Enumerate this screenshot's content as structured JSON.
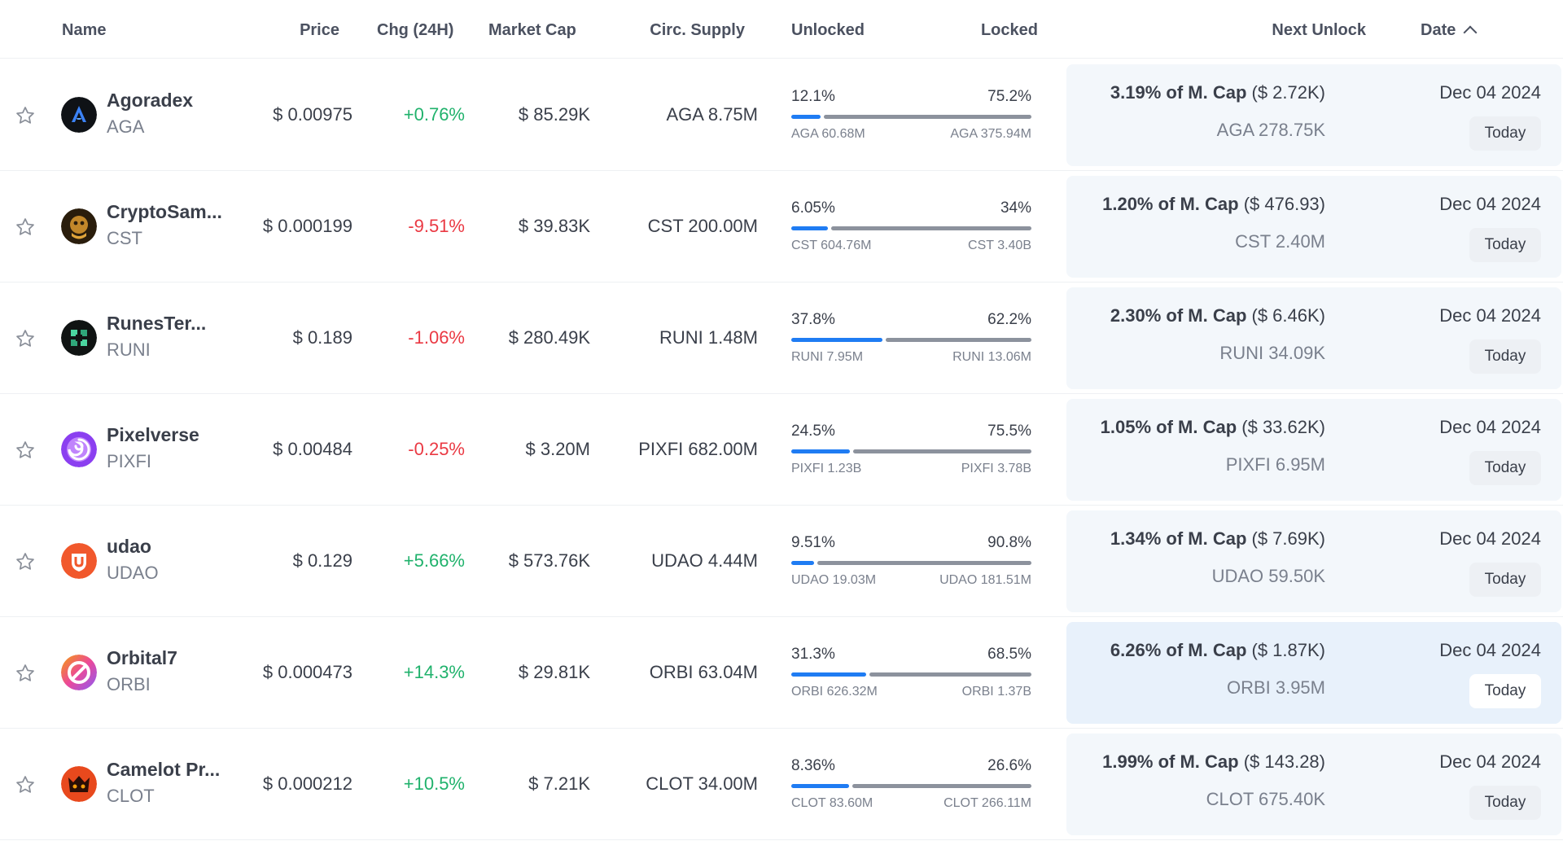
{
  "header": {
    "name": "Name",
    "price": "Price",
    "chg": "Chg (24H)",
    "market_cap": "Market Cap",
    "circ_supply": "Circ. Supply",
    "unlocked": "Unlocked",
    "locked": "Locked",
    "next_unlock": "Next Unlock",
    "date": "Date"
  },
  "colors": {
    "up": "#20b26c",
    "down": "#ea3943",
    "bar_fill": "#1f7cf3",
    "bar_rest": "#8c929d"
  },
  "rows": [
    {
      "name": "Agoradex",
      "symbol": "AGA",
      "logo_icon": "agoradex-logo-icon",
      "price": "$ 0.00975",
      "chg": "+0.76%",
      "chg_dir": "up",
      "market_cap": "$ 85.29K",
      "circ_supply": "AGA 8.75M",
      "unlocked_pct": "12.1%",
      "locked_pct": "75.2%",
      "unlocked_fraction": 0.121,
      "unlocked_amt": "AGA 60.68M",
      "locked_amt": "AGA 375.94M",
      "next_pct": "3.19% of M. Cap",
      "next_usd": " ($ 2.72K)",
      "next_amt": "AGA 278.75K",
      "date": "Dec 04 2024",
      "today": "Today"
    },
    {
      "name": "CryptoSam...",
      "symbol": "CST",
      "logo_icon": "cryptosam-logo-icon",
      "price": "$ 0.000199",
      "chg": "-9.51%",
      "chg_dir": "down",
      "market_cap": "$ 39.83K",
      "circ_supply": "CST 200.00M",
      "unlocked_pct": "6.05%",
      "locked_pct": "34%",
      "unlocked_fraction": 0.151,
      "unlocked_amt": "CST 604.76M",
      "locked_amt": "CST 3.40B",
      "next_pct": "1.20% of M. Cap",
      "next_usd": " ($ 476.93)",
      "next_amt": "CST 2.40M",
      "date": "Dec 04 2024",
      "today": "Today"
    },
    {
      "name": "RunesTer...",
      "symbol": "RUNI",
      "logo_icon": "runester-logo-icon",
      "price": "$ 0.189",
      "chg": "-1.06%",
      "chg_dir": "down",
      "market_cap": "$ 280.49K",
      "circ_supply": "RUNI 1.48M",
      "unlocked_pct": "37.8%",
      "locked_pct": "62.2%",
      "unlocked_fraction": 0.378,
      "unlocked_amt": "RUNI 7.95M",
      "locked_amt": "RUNI 13.06M",
      "next_pct": "2.30% of M. Cap",
      "next_usd": " ($ 6.46K)",
      "next_amt": "RUNI 34.09K",
      "date": "Dec 04 2024",
      "today": "Today"
    },
    {
      "name": "Pixelverse",
      "symbol": "PIXFI",
      "logo_icon": "pixelverse-logo-icon",
      "price": "$ 0.00484",
      "chg": "-0.25%",
      "chg_dir": "down",
      "market_cap": "$ 3.20M",
      "circ_supply": "PIXFI 682.00M",
      "unlocked_pct": "24.5%",
      "locked_pct": "75.5%",
      "unlocked_fraction": 0.245,
      "unlocked_amt": "PIXFI 1.23B",
      "locked_amt": "PIXFI 3.78B",
      "next_pct": "1.05% of M. Cap",
      "next_usd": " ($ 33.62K)",
      "next_amt": "PIXFI 6.95M",
      "date": "Dec 04 2024",
      "today": "Today"
    },
    {
      "name": "udao",
      "symbol": "UDAO",
      "logo_icon": "udao-logo-icon",
      "price": "$ 0.129",
      "chg": "+5.66%",
      "chg_dir": "up",
      "market_cap": "$ 573.76K",
      "circ_supply": "UDAO 4.44M",
      "unlocked_pct": "9.51%",
      "locked_pct": "90.8%",
      "unlocked_fraction": 0.095,
      "unlocked_amt": "UDAO 19.03M",
      "locked_amt": "UDAO 181.51M",
      "next_pct": "1.34% of M. Cap",
      "next_usd": " ($ 7.69K)",
      "next_amt": "UDAO 59.50K",
      "date": "Dec 04 2024",
      "today": "Today"
    },
    {
      "name": "Orbital7",
      "symbol": "ORBI",
      "logo_icon": "orbital7-logo-icon",
      "price": "$ 0.000473",
      "chg": "+14.3%",
      "chg_dir": "up",
      "market_cap": "$ 29.81K",
      "circ_supply": "ORBI 63.04M",
      "unlocked_pct": "31.3%",
      "locked_pct": "68.5%",
      "unlocked_fraction": 0.313,
      "unlocked_amt": "ORBI 626.32M",
      "locked_amt": "ORBI 1.37B",
      "next_pct": "6.26% of M. Cap",
      "next_usd": " ($ 1.87K)",
      "next_amt": "ORBI 3.95M",
      "date": "Dec 04 2024",
      "today": "Today",
      "highlight": true
    },
    {
      "name": "Camelot Pr...",
      "symbol": "CLOT",
      "logo_icon": "camelot-logo-icon",
      "price": "$ 0.000212",
      "chg": "+10.5%",
      "chg_dir": "up",
      "market_cap": "$ 7.21K",
      "circ_supply": "CLOT 34.00M",
      "unlocked_pct": "8.36%",
      "locked_pct": "26.6%",
      "unlocked_fraction": 0.239,
      "unlocked_amt": "CLOT 83.60M",
      "locked_amt": "CLOT 266.11M",
      "next_pct": "1.99% of M. Cap",
      "next_usd": " ($ 143.28)",
      "next_amt": "CLOT 675.40K",
      "date": "Dec 04 2024",
      "today": "Today"
    }
  ]
}
